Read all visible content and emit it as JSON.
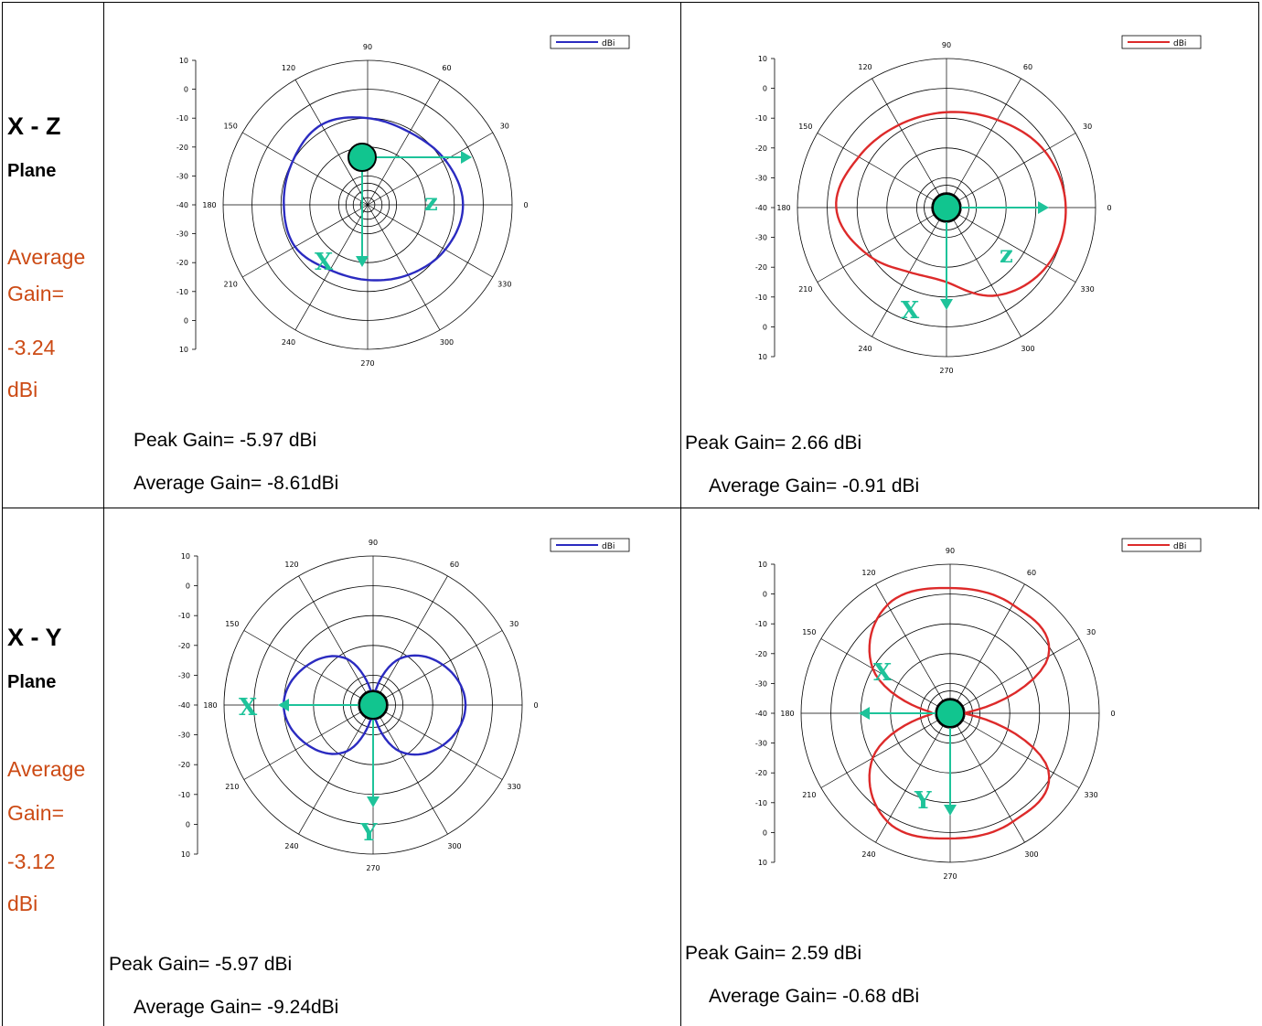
{
  "rows": [
    {
      "title": "X - Z",
      "subtitle": "Plane",
      "avg_lines": [
        "Average",
        "Gain=",
        "-3.24",
        "dBi"
      ],
      "cells": [
        {
          "peak": "Peak Gain= -5.97 dBi",
          "avg": "Average Gain= -8.61dBi"
        },
        {
          "peak": "Peak Gain= 2.66 dBi",
          "avg": "Average Gain= -0.91 dBi"
        }
      ]
    },
    {
      "title": "X - Y",
      "subtitle": "Plane",
      "avg_lines": [
        "Average",
        "Gain=",
        "-3.12",
        "dBi"
      ],
      "cells": [
        {
          "peak": "Peak Gain= -5.97 dBi",
          "avg": "Average Gain= -9.24dBi"
        },
        {
          "peak": "Peak Gain= 2.59 dBi",
          "avg": "Average Gain= -0.68 dBi"
        }
      ]
    }
  ],
  "chart_data": [
    {
      "type": "polar",
      "id": "xz-left",
      "legend": [
        "dBi"
      ],
      "color": "#2b2bc0",
      "radial_range": [
        -40,
        10
      ],
      "radial_tick_labels": [
        "10",
        "0",
        "-10",
        "-20",
        "-30",
        "-40",
        "-30",
        "-20",
        "-10",
        "0",
        "10"
      ],
      "angle_tick_labels": [
        "0",
        "30",
        "60",
        "90",
        "120",
        "150",
        "180",
        "210",
        "240",
        "270",
        "300",
        "330"
      ],
      "angles_deg": [
        0,
        30,
        60,
        90,
        120,
        150,
        180,
        210,
        240,
        270,
        300,
        330
      ],
      "series": [
        {
          "name": "dBi",
          "values": [
            -7,
            -9,
            -11,
            -10,
            -8,
            -10,
            -11,
            -11,
            -14,
            -14,
            -12,
            -9
          ]
        }
      ],
      "axis_letters": {
        "first": "z",
        "second": "X"
      },
      "arrows": {
        "first": "right",
        "second": "down"
      }
    },
    {
      "type": "polar",
      "id": "xz-right",
      "legend": [
        "dBi"
      ],
      "color": "#dd2a2a",
      "radial_range": [
        -40,
        10
      ],
      "radial_tick_labels": [
        "10",
        "0",
        "-10",
        "-20",
        "-30",
        "-40",
        "-30",
        "-20",
        "-10",
        "0",
        "10"
      ],
      "angle_tick_labels": [
        "0",
        "30",
        "60",
        "90",
        "120",
        "150",
        "180",
        "210",
        "240",
        "270",
        "300",
        "330"
      ],
      "angles_deg": [
        0,
        30,
        60,
        90,
        120,
        150,
        180,
        210,
        240,
        270,
        300,
        330
      ],
      "series": [
        {
          "name": "dBi",
          "values": [
            0,
            -2,
            -6,
            -8,
            -8,
            -6,
            -3,
            -9,
            -15,
            -15,
            -6,
            -1
          ]
        }
      ],
      "axis_letters": {
        "first": "z",
        "second": "X"
      },
      "arrows": {
        "first": "right",
        "second": "down"
      }
    },
    {
      "type": "polar",
      "id": "xy-left",
      "legend": [
        "dBi"
      ],
      "color": "#2b2bc0",
      "radial_range": [
        -40,
        10
      ],
      "radial_tick_labels": [
        "10",
        "0",
        "-10",
        "-20",
        "-30",
        "-40",
        "-30",
        "-20",
        "-10",
        "0",
        "10"
      ],
      "angle_tick_labels": [
        "0",
        "30",
        "60",
        "90",
        "120",
        "150",
        "180",
        "210",
        "240",
        "270",
        "300",
        "330"
      ],
      "angles_deg": [
        0,
        30,
        60,
        90,
        120,
        150,
        180,
        210,
        240,
        270,
        300,
        330
      ],
      "series": [
        {
          "name": "dBi",
          "values": [
            -9,
            -13,
            -22,
            -38,
            -22,
            -14,
            -10,
            -14,
            -22,
            -38,
            -22,
            -13
          ]
        }
      ],
      "axis_letters": {
        "first": "X",
        "second": "Y"
      },
      "arrows": {
        "first": "left",
        "second": "down"
      }
    },
    {
      "type": "polar",
      "id": "xy-right",
      "legend": [
        "dBi"
      ],
      "color": "#dd2a2a",
      "radial_range": [
        -40,
        10
      ],
      "radial_tick_labels": [
        "10",
        "0",
        "-10",
        "-20",
        "-30",
        "-40",
        "-30",
        "-20",
        "-10",
        "0",
        "10"
      ],
      "angle_tick_labels": [
        "0",
        "30",
        "60",
        "90",
        "120",
        "150",
        "180",
        "210",
        "240",
        "270",
        "300",
        "330"
      ],
      "angles_deg": [
        0,
        30,
        60,
        90,
        120,
        150,
        180,
        210,
        240,
        270,
        300,
        330
      ],
      "series": [
        {
          "name": "dBi",
          "values": [
            -35,
            -2,
            2,
            2,
            2,
            -10,
            -34,
            -10,
            2,
            2,
            2,
            -2
          ]
        }
      ],
      "axis_letters": {
        "first": "X",
        "second": "Y"
      },
      "arrows": {
        "first": "left",
        "second": "down"
      }
    }
  ]
}
